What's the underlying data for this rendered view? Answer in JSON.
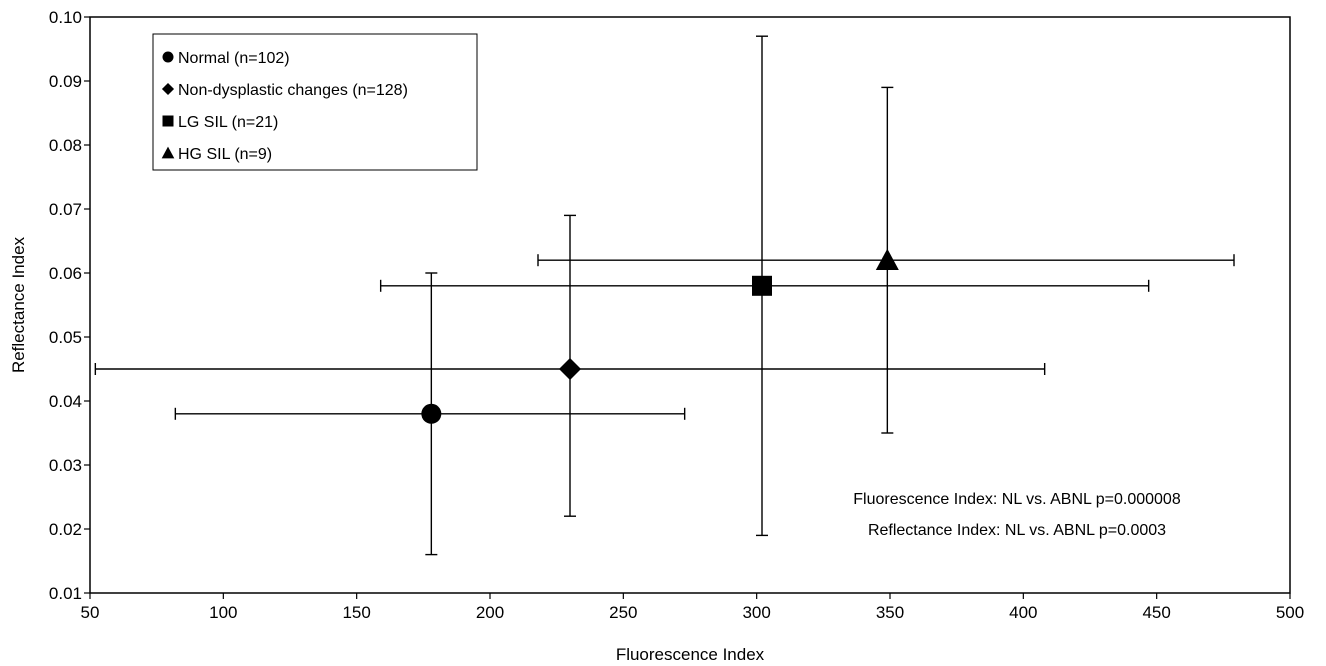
{
  "chart_data": {
    "type": "scatter",
    "title": "",
    "xlabel": "Fluorescence Index",
    "ylabel": "Reflectance Index",
    "xlim": [
      50,
      500
    ],
    "ylim": [
      0.01,
      0.1
    ],
    "xticks": [
      "50",
      "100",
      "150",
      "200",
      "250",
      "300",
      "350",
      "400",
      "450",
      "500"
    ],
    "yticks": [
      "0.01",
      "0.02",
      "0.03",
      "0.04",
      "0.05",
      "0.06",
      "0.07",
      "0.08",
      "0.09",
      "0.10"
    ],
    "grid": false,
    "legend_position": "top-left",
    "series": [
      {
        "name": "Normal (n=102)",
        "marker": "circle",
        "x": 178,
        "y": 0.038,
        "x_err": [
          82,
          273
        ],
        "y_err": [
          0.016,
          0.06
        ]
      },
      {
        "name": "Non-dysplastic changes (n=128)",
        "marker": "diamond",
        "x": 230,
        "y": 0.045,
        "x_err": [
          52,
          408
        ],
        "y_err": [
          0.022,
          0.069
        ]
      },
      {
        "name": "LG SIL (n=21)",
        "marker": "square",
        "x": 302,
        "y": 0.058,
        "x_err": [
          159,
          447
        ],
        "y_err": [
          0.019,
          0.097
        ]
      },
      {
        "name": "HG SIL (n=9)",
        "marker": "triangle",
        "x": 349,
        "y": 0.062,
        "x_err": [
          218,
          479
        ],
        "y_err": [
          0.035,
          0.089
        ]
      }
    ],
    "annotations": [
      "Fluorescence Index: NL vs. ABNL p=0.000008",
      "Reflectance Index: NL vs. ABNL p=0.0003"
    ]
  }
}
